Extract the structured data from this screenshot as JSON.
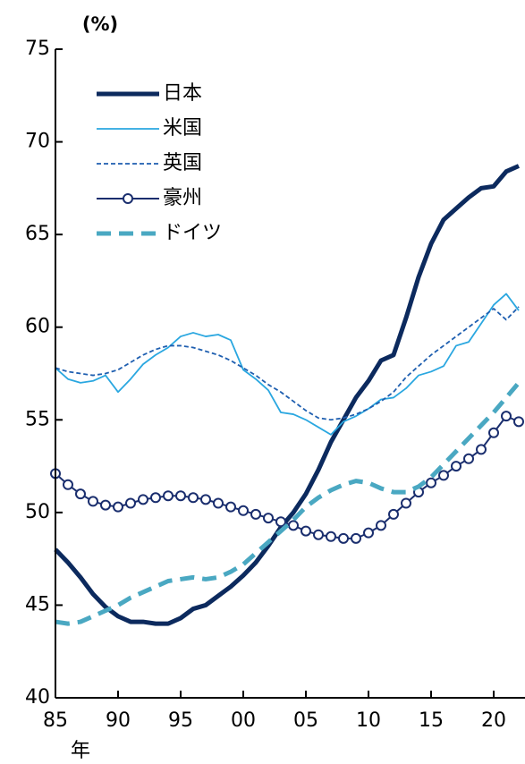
{
  "chart_data": {
    "type": "line",
    "y_unit_label": "(%)",
    "x_label": "年",
    "x": [
      1985,
      1986,
      1987,
      1988,
      1989,
      1990,
      1991,
      1992,
      1993,
      1994,
      1995,
      1996,
      1997,
      1998,
      1999,
      2000,
      2001,
      2002,
      2003,
      2004,
      2005,
      2006,
      2007,
      2008,
      2009,
      2010,
      2011,
      2012,
      2013,
      2014,
      2015,
      2016,
      2017,
      2018,
      2019,
      2020,
      2021,
      2022
    ],
    "xlim": [
      1985,
      2022.5
    ],
    "xticks": [
      {
        "value": 1985,
        "label": "85"
      },
      {
        "value": 1990,
        "label": "90"
      },
      {
        "value": 1995,
        "label": "95"
      },
      {
        "value": 2000,
        "label": "00"
      },
      {
        "value": 2005,
        "label": "05"
      },
      {
        "value": 2010,
        "label": "10"
      },
      {
        "value": 2015,
        "label": "15"
      },
      {
        "value": 2020,
        "label": "20"
      }
    ],
    "ylim": [
      40,
      75
    ],
    "yticks": [
      40,
      45,
      50,
      55,
      60,
      65,
      70,
      75
    ],
    "legend": "upper left",
    "series": [
      {
        "name": "日本",
        "color": "#0c2a5e",
        "line_width": 5,
        "style": "solid",
        "marker": "none",
        "values": [
          48.0,
          47.3,
          46.5,
          45.6,
          44.9,
          44.4,
          44.1,
          44.1,
          44.0,
          44.0,
          44.3,
          44.8,
          45.0,
          45.5,
          46.0,
          46.6,
          47.3,
          48.2,
          49.2,
          50.0,
          51.0,
          52.3,
          53.8,
          55.0,
          56.2,
          57.1,
          58.2,
          58.5,
          60.5,
          62.7,
          64.5,
          65.8,
          66.4,
          67.0,
          67.5,
          67.6,
          68.4,
          68.7
        ]
      },
      {
        "name": "米国",
        "color": "#2aa7e0",
        "line_width": 1.8,
        "style": "solid",
        "marker": "none",
        "values": [
          57.8,
          57.2,
          57.0,
          57.1,
          57.4,
          56.5,
          57.2,
          58.0,
          58.5,
          58.9,
          59.5,
          59.7,
          59.5,
          59.6,
          59.3,
          57.7,
          57.2,
          56.6,
          55.4,
          55.3,
          55.0,
          54.6,
          54.2,
          54.9,
          55.2,
          55.6,
          56.1,
          56.2,
          56.7,
          57.4,
          57.6,
          57.9,
          59.0,
          59.2,
          60.2,
          61.2,
          61.8,
          60.9
        ]
      },
      {
        "name": "英国",
        "color": "#1f5fb0",
        "line_width": 1.8,
        "style": "dashed",
        "marker": "none",
        "values": [
          57.8,
          57.6,
          57.5,
          57.4,
          57.5,
          57.7,
          58.1,
          58.5,
          58.8,
          59.0,
          59.0,
          58.9,
          58.7,
          58.5,
          58.2,
          57.8,
          57.4,
          56.9,
          56.5,
          56.0,
          55.5,
          55.1,
          55.0,
          55.1,
          55.3,
          55.6,
          56.0,
          56.5,
          57.3,
          57.9,
          58.5,
          59.0,
          59.5,
          60.0,
          60.5,
          61.0,
          60.4,
          61.1
        ]
      },
      {
        "name": "豪州",
        "color": "#1a2e6e",
        "line_width": 2,
        "style": "solid",
        "marker": "circle",
        "values": [
          52.1,
          51.5,
          51.0,
          50.6,
          50.4,
          50.3,
          50.5,
          50.7,
          50.8,
          50.9,
          50.9,
          50.8,
          50.7,
          50.5,
          50.3,
          50.1,
          49.9,
          49.7,
          49.5,
          49.3,
          49.0,
          48.8,
          48.7,
          48.6,
          48.6,
          48.9,
          49.3,
          49.9,
          50.5,
          51.1,
          51.6,
          52.0,
          52.5,
          52.9,
          53.4,
          54.3,
          55.2,
          54.9
        ]
      },
      {
        "name": "ドイツ",
        "color": "#4aa8c2",
        "line_width": 5,
        "style": "dashed",
        "marker": "none",
        "values": [
          44.1,
          44.0,
          44.1,
          44.4,
          44.7,
          45.0,
          45.4,
          45.7,
          46.0,
          46.3,
          46.4,
          46.5,
          46.4,
          46.5,
          46.8,
          47.2,
          47.8,
          48.4,
          49.0,
          49.6,
          50.3,
          50.8,
          51.2,
          51.5,
          51.7,
          51.6,
          51.3,
          51.1,
          51.1,
          51.4,
          51.9,
          52.6,
          53.3,
          54.0,
          54.7,
          55.4,
          56.2,
          57.0
        ]
      }
    ]
  }
}
